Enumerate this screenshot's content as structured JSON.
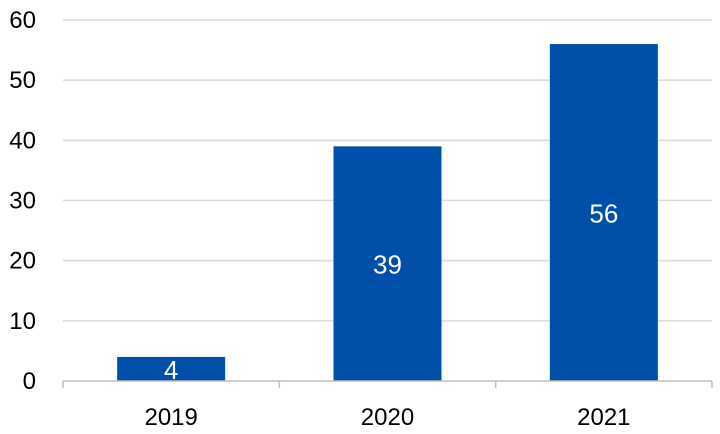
{
  "chart_data": {
    "type": "bar",
    "categories": [
      "2019",
      "2020",
      "2021"
    ],
    "values": [
      4,
      39,
      56
    ],
    "title": "",
    "xlabel": "",
    "ylabel": "",
    "ylim": [
      0,
      60
    ],
    "yticks": [
      0,
      10,
      20,
      30,
      40,
      50,
      60
    ],
    "grid": true,
    "legend": "none",
    "data_labels": [
      "4",
      "39",
      "56"
    ],
    "colors": {
      "bar": "#0050AA",
      "grid": "#D9D9D9",
      "axis": "#BFBFBF"
    }
  }
}
